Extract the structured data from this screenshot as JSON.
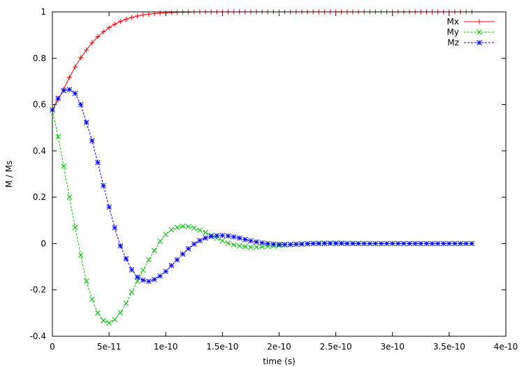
{
  "chart_data": {
    "type": "line",
    "title": "",
    "xlabel": "time (s)",
    "ylabel": "M / Ms",
    "xlim": [
      0,
      4e-10
    ],
    "ylim": [
      -0.4,
      1.0
    ],
    "x_ticks": [
      {
        "value": 0,
        "label": "0"
      },
      {
        "value": 5e-11,
        "label": "5e-11"
      },
      {
        "value": 1e-10,
        "label": "1e-10"
      },
      {
        "value": 1.5e-10,
        "label": "1.5e-10"
      },
      {
        "value": 2e-10,
        "label": "2e-10"
      },
      {
        "value": 2.5e-10,
        "label": "2.5e-10"
      },
      {
        "value": 3e-10,
        "label": "3e-10"
      },
      {
        "value": 3.5e-10,
        "label": "3.5e-10"
      },
      {
        "value": 4e-10,
        "label": "4e-10"
      }
    ],
    "y_ticks": [
      {
        "value": -0.4,
        "label": "-0.4"
      },
      {
        "value": -0.2,
        "label": "-0.2"
      },
      {
        "value": 0,
        "label": "0"
      },
      {
        "value": 0.2,
        "label": "0.2"
      },
      {
        "value": 0.4,
        "label": "0.4"
      },
      {
        "value": 0.6,
        "label": "0.6"
      },
      {
        "value": 0.8,
        "label": "0.8"
      },
      {
        "value": 1,
        "label": "1"
      }
    ],
    "grid": false,
    "legend_position": "top-right",
    "series": [
      {
        "name": "Mx",
        "color": "#ff0000",
        "line_style": "solid",
        "marker": "plus",
        "x": [
          0,
          5e-12,
          1e-11,
          1.5e-11,
          2e-11,
          2.5e-11,
          3e-11,
          3.5e-11,
          4e-11,
          4.5e-11,
          5e-11,
          5.5e-11,
          6e-11,
          6.5e-11,
          7e-11,
          7.5e-11,
          8e-11,
          8.5e-11,
          9e-11,
          9.5e-11,
          1e-10,
          1.05e-10,
          1.1e-10,
          1.15e-10,
          1.2e-10,
          1.25e-10,
          1.3e-10,
          1.35e-10,
          1.4e-10,
          1.45e-10,
          1.5e-10,
          1.55e-10,
          1.6e-10,
          1.65e-10,
          1.7e-10,
          1.75e-10,
          1.8e-10,
          1.85e-10,
          1.9e-10,
          1.95e-10,
          2e-10,
          2.05e-10,
          2.1e-10,
          2.15e-10,
          2.2e-10,
          2.25e-10,
          2.3e-10,
          2.35e-10,
          2.4e-10,
          2.45e-10,
          2.5e-10,
          2.55e-10,
          2.6e-10,
          2.65e-10,
          2.7e-10,
          2.75e-10,
          2.8e-10,
          2.85e-10,
          2.9e-10,
          2.95e-10,
          3e-10,
          3.05e-10,
          3.1e-10,
          3.15e-10,
          3.2e-10,
          3.25e-10,
          3.3e-10,
          3.35e-10,
          3.4e-10,
          3.45e-10,
          3.5e-10,
          3.55e-10,
          3.6e-10,
          3.65e-10,
          3.7e-10
        ],
        "y": [
          0.577,
          0.62,
          0.667,
          0.717,
          0.762,
          0.802,
          0.836,
          0.867,
          0.893,
          0.914,
          0.932,
          0.947,
          0.959,
          0.968,
          0.976,
          0.982,
          0.987,
          0.99,
          0.993,
          0.995,
          0.996,
          0.997,
          0.998,
          0.999,
          0.999,
          1.0,
          1.0,
          1.0,
          1.0,
          1.0,
          1.0,
          1.0,
          1.0,
          1.0,
          1.0,
          1.0,
          1.0,
          1.0,
          1.0,
          1.0,
          1.0,
          1.0,
          1.0,
          1.0,
          1.0,
          1.0,
          1.0,
          1.0,
          1.0,
          1.0,
          1.0,
          1.0,
          1.0,
          1.0,
          1.0,
          1.0,
          1.0,
          1.0,
          1.0,
          1.0,
          1.0,
          1.0,
          1.0,
          1.0,
          1.0,
          1.0,
          1.0,
          1.0,
          1.0,
          1.0,
          1.0,
          1.0,
          1.0,
          1.0,
          1.0
        ]
      },
      {
        "name": "My",
        "color": "#00c000",
        "line_style": "dashed",
        "marker": "cross",
        "x": [
          0,
          5e-12,
          1e-11,
          1.5e-11,
          2e-11,
          2.5e-11,
          3e-11,
          3.5e-11,
          4e-11,
          4.5e-11,
          5e-11,
          5.5e-11,
          6e-11,
          6.5e-11,
          7e-11,
          7.5e-11,
          8e-11,
          8.5e-11,
          9e-11,
          9.5e-11,
          1e-10,
          1.05e-10,
          1.1e-10,
          1.15e-10,
          1.2e-10,
          1.25e-10,
          1.3e-10,
          1.35e-10,
          1.4e-10,
          1.45e-10,
          1.5e-10,
          1.55e-10,
          1.6e-10,
          1.65e-10,
          1.7e-10,
          1.75e-10,
          1.8e-10,
          1.85e-10,
          1.9e-10,
          1.95e-10,
          2e-10,
          2.05e-10,
          2.1e-10,
          2.15e-10,
          2.2e-10,
          2.25e-10,
          2.3e-10,
          2.35e-10,
          2.4e-10,
          2.45e-10,
          2.5e-10,
          2.55e-10,
          2.6e-10,
          2.65e-10,
          2.7e-10,
          2.75e-10,
          2.8e-10,
          2.85e-10,
          2.9e-10,
          2.95e-10,
          3e-10,
          3.05e-10,
          3.1e-10,
          3.15e-10,
          3.2e-10,
          3.25e-10,
          3.3e-10,
          3.35e-10,
          3.4e-10,
          3.45e-10,
          3.5e-10,
          3.55e-10,
          3.6e-10,
          3.65e-10,
          3.7e-10
        ],
        "y": [
          0.577,
          0.462,
          0.334,
          0.2,
          0.07,
          -0.05,
          -0.162,
          -0.24,
          -0.3,
          -0.332,
          -0.342,
          -0.328,
          -0.298,
          -0.258,
          -0.21,
          -0.162,
          -0.115,
          -0.07,
          -0.03,
          0.01,
          0.04,
          0.06,
          0.07,
          0.075,
          0.073,
          0.067,
          0.058,
          0.048,
          0.035,
          0.023,
          0.012,
          0.002,
          -0.005,
          -0.01,
          -0.013,
          -0.015,
          -0.015,
          -0.014,
          -0.012,
          -0.01,
          -0.008,
          -0.006,
          -0.004,
          -0.002,
          -0.001,
          0.0,
          0.001,
          0.002,
          0.002,
          0.002,
          0.002,
          0.002,
          0.001,
          0.001,
          0.001,
          0.0,
          0.0,
          0.0,
          0.0,
          0.0,
          0.0,
          0.0,
          0.0,
          0.0,
          0.0,
          0.0,
          0.0,
          0.0,
          0.0,
          0.0,
          0.0,
          0.0,
          0.0,
          0.0,
          0.0
        ]
      },
      {
        "name": "Mz",
        "color": "#0000ff",
        "line_style": "dashed",
        "marker": "star",
        "x": [
          0,
          5e-12,
          1e-11,
          1.5e-11,
          2e-11,
          2.5e-11,
          3e-11,
          3.5e-11,
          4e-11,
          4.5e-11,
          5e-11,
          5.5e-11,
          6e-11,
          6.5e-11,
          7e-11,
          7.5e-11,
          8e-11,
          8.5e-11,
          9e-11,
          9.5e-11,
          1e-10,
          1.05e-10,
          1.1e-10,
          1.15e-10,
          1.2e-10,
          1.25e-10,
          1.3e-10,
          1.35e-10,
          1.4e-10,
          1.45e-10,
          1.5e-10,
          1.55e-10,
          1.6e-10,
          1.65e-10,
          1.7e-10,
          1.75e-10,
          1.8e-10,
          1.85e-10,
          1.9e-10,
          1.95e-10,
          2e-10,
          2.05e-10,
          2.1e-10,
          2.15e-10,
          2.2e-10,
          2.25e-10,
          2.3e-10,
          2.35e-10,
          2.4e-10,
          2.45e-10,
          2.5e-10,
          2.55e-10,
          2.6e-10,
          2.65e-10,
          2.7e-10,
          2.75e-10,
          2.8e-10,
          2.85e-10,
          2.9e-10,
          2.95e-10,
          3e-10,
          3.05e-10,
          3.1e-10,
          3.15e-10,
          3.2e-10,
          3.25e-10,
          3.3e-10,
          3.35e-10,
          3.4e-10,
          3.45e-10,
          3.5e-10,
          3.55e-10,
          3.6e-10,
          3.65e-10,
          3.7e-10
        ],
        "y": [
          0.577,
          0.627,
          0.66,
          0.665,
          0.648,
          0.6,
          0.523,
          0.444,
          0.35,
          0.25,
          0.158,
          0.068,
          -0.01,
          -0.065,
          -0.113,
          -0.145,
          -0.158,
          -0.163,
          -0.155,
          -0.14,
          -0.12,
          -0.095,
          -0.07,
          -0.045,
          -0.022,
          -0.002,
          0.013,
          0.024,
          0.031,
          0.034,
          0.035,
          0.033,
          0.029,
          0.024,
          0.018,
          0.012,
          0.007,
          0.003,
          0.0,
          -0.002,
          -0.004,
          -0.004,
          -0.004,
          -0.003,
          -0.002,
          -0.001,
          0.0,
          0.0,
          0.001,
          0.001,
          0.001,
          0.001,
          0.0,
          0.0,
          0.0,
          0.0,
          0.0,
          0.0,
          0.0,
          0.0,
          0.0,
          0.0,
          0.0,
          0.0,
          0.0,
          0.0,
          0.0,
          0.0,
          0.0,
          0.0,
          0.0,
          0.0,
          0.0,
          0.0,
          0.0
        ]
      }
    ]
  }
}
